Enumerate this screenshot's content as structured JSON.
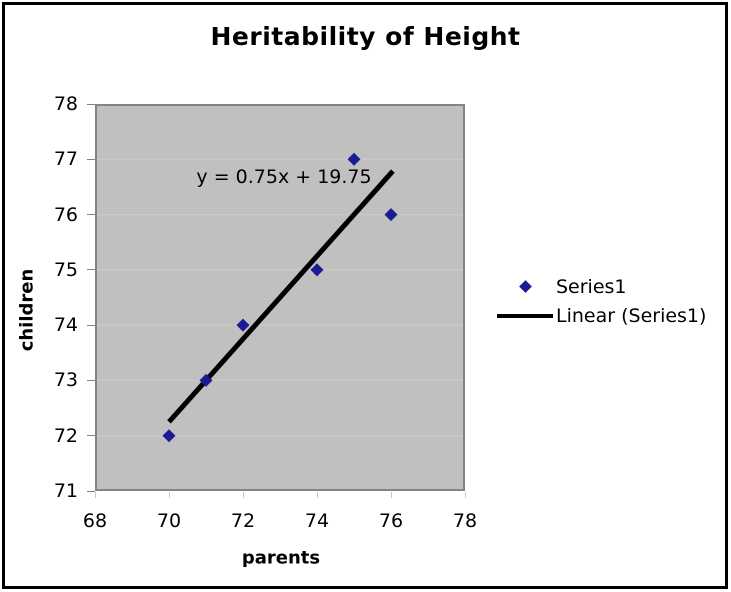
{
  "chart_data": {
    "type": "scatter",
    "title": "Heritability of Height",
    "xlabel": "parents",
    "ylabel": "children",
    "xlim": [
      68,
      78
    ],
    "ylim": [
      71,
      78
    ],
    "x_ticks": [
      68,
      70,
      72,
      74,
      76,
      78
    ],
    "y_ticks": [
      71,
      72,
      73,
      74,
      75,
      76,
      77,
      78
    ],
    "grid": "horizontal",
    "points": [
      {
        "x": 70,
        "y": 72
      },
      {
        "x": 71,
        "y": 73
      },
      {
        "x": 72,
        "y": 74
      },
      {
        "x": 74,
        "y": 75
      },
      {
        "x": 75,
        "y": 77
      },
      {
        "x": 76,
        "y": 76
      }
    ],
    "trendline": {
      "slope": 0.75,
      "intercept": 19.75,
      "x_start": 70,
      "x_end": 76.05,
      "equation_label": "y = 0.75x + 19.75"
    },
    "legend_position": "right",
    "legend": [
      {
        "label": "Series1",
        "marker": "diamond"
      },
      {
        "label": "Linear (Series1)",
        "marker": "line"
      }
    ],
    "colors": {
      "marker": "#1a1a94",
      "trendline": "#000000",
      "plot_bg": "#c0c0c0",
      "plot_border": "#848284",
      "gridline": "#cccccc",
      "y_tick": "#808080",
      "x_tick": "#c9c9c9",
      "text": "#000000"
    }
  }
}
